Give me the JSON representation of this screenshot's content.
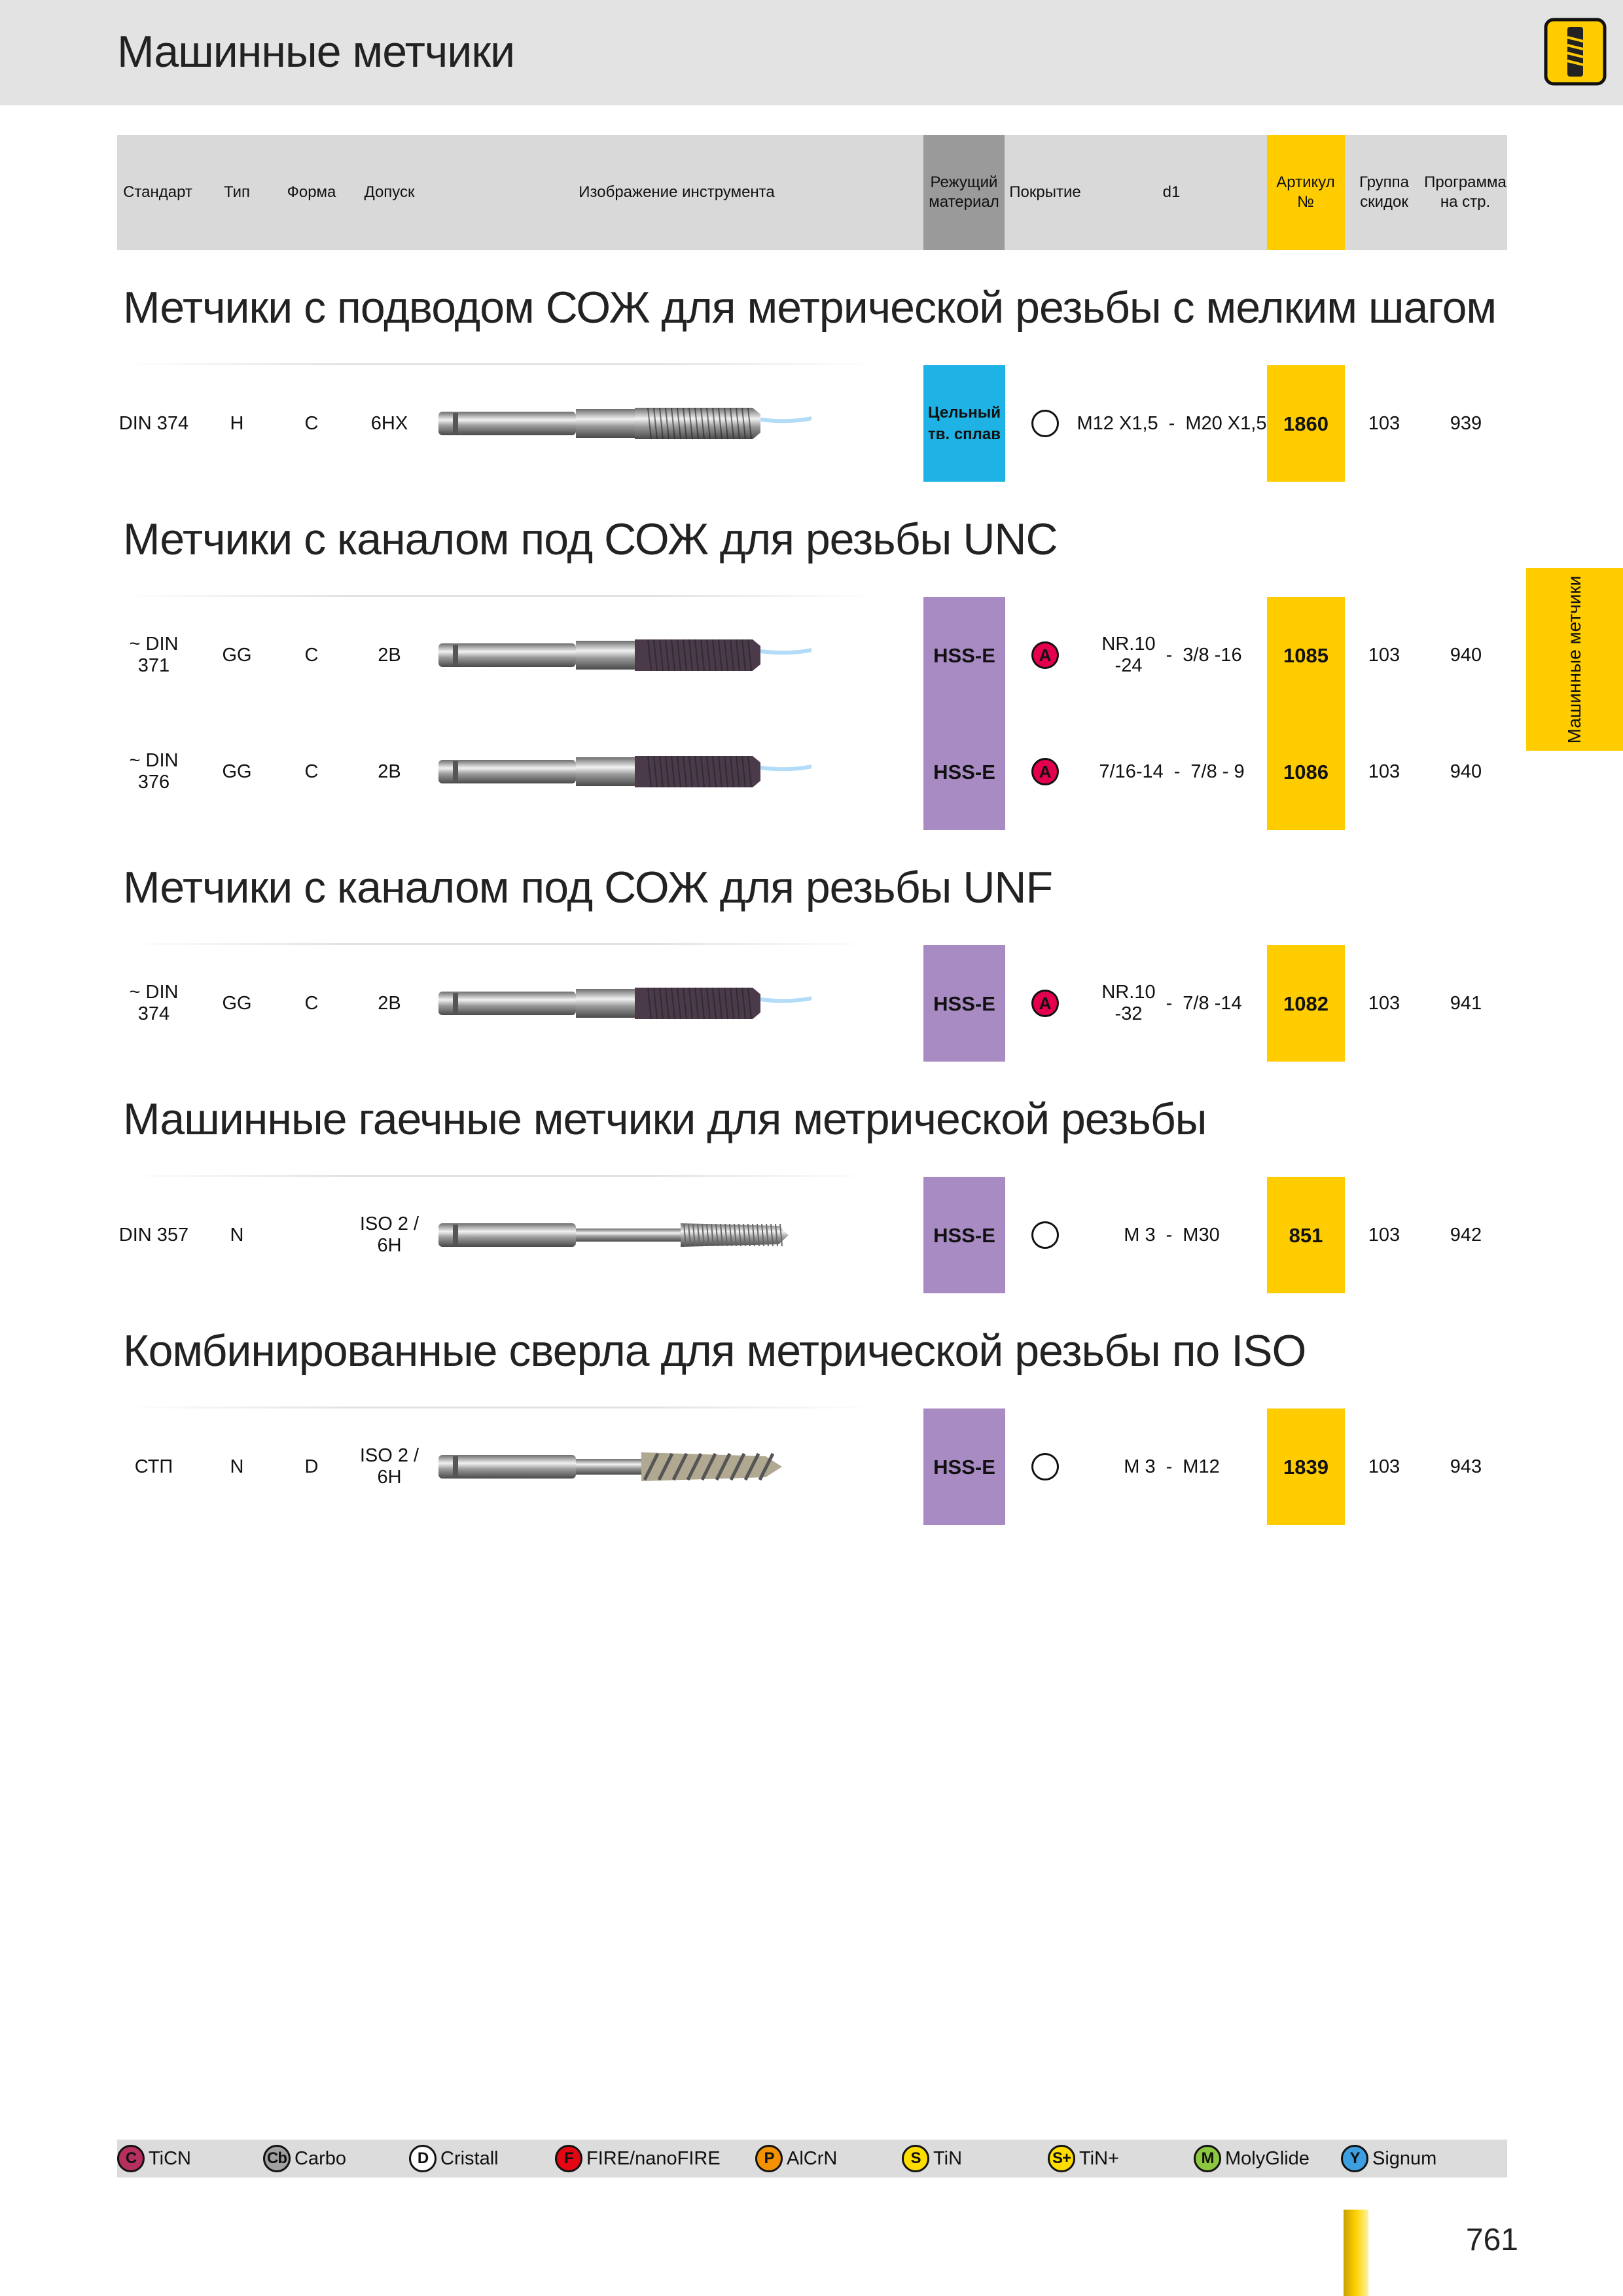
{
  "header": {
    "title": "Машинные метчики"
  },
  "side_tab": "Машинные метчики",
  "table": {
    "columns": [
      "Стандарт",
      "Тип",
      "Форма",
      "Допуск",
      "Изображение инструмента",
      "Режущий\nматериал",
      "Покрытие",
      "d1",
      "Артикул\n№",
      "Группа\nскидок",
      "Программа\nна стр."
    ]
  },
  "sections": [
    {
      "title": "Метчики с подводом СОЖ для метрической резьбы с мелким шагом",
      "rows": [
        {
          "standard": "DIN 374",
          "type": "H",
          "form": "C",
          "tolerance": "6HX",
          "material": "Цельный\nтв. сплав",
          "material_color": "#1fb3e5",
          "d1": [
            "M12 X1,5",
            "-",
            "M20 X1,5"
          ],
          "article": "1860",
          "discount_group": "103",
          "page": "939"
        }
      ]
    },
    {
      "title": "Метчики с каналом под СОЖ для резьбы UNC",
      "rows": [
        {
          "standard": "~ DIN\n371",
          "type": "GG",
          "form": "C",
          "tolerance": "2B",
          "material": "HSS-E",
          "material_color": "#a98bc4",
          "coating": "A",
          "coating_color": "#e5004f",
          "d1": [
            "NR.10\n-24",
            "-",
            "3/8 -16"
          ],
          "article": "1085",
          "discount_group": "103",
          "page": "940"
        },
        {
          "standard": "~ DIN\n376",
          "type": "GG",
          "form": "C",
          "tolerance": "2B",
          "material": "HSS-E",
          "material_color": "#a98bc4",
          "coating": "A",
          "coating_color": "#e5004f",
          "d1": [
            "7/16-14",
            "-",
            "7/8 - 9"
          ],
          "article": "1086",
          "discount_group": "103",
          "page": "940"
        }
      ]
    },
    {
      "title": "Метчики с каналом под СОЖ для резьбы UNF",
      "rows": [
        {
          "standard": "~ DIN\n374",
          "type": "GG",
          "form": "C",
          "tolerance": "2B",
          "material": "HSS-E",
          "material_color": "#a98bc4",
          "coating": "A",
          "coating_color": "#e5004f",
          "d1": [
            "NR.10\n-32",
            "-",
            "7/8 -14"
          ],
          "article": "1082",
          "discount_group": "103",
          "page": "941"
        }
      ]
    },
    {
      "title": "Машинные гаечные метчики для метрической резьбы",
      "rows": [
        {
          "standard": "DIN 357",
          "type": "N",
          "tolerance": "ISO 2 /\n6H",
          "material": "HSS-E",
          "material_color": "#a98bc4",
          "d1": [
            "M 3",
            "-",
            "M30"
          ],
          "article": "851",
          "discount_group": "103",
          "page": "942"
        }
      ]
    },
    {
      "title": "Комбинированные сверла для метрической резьбы по ISO",
      "rows": [
        {
          "standard": "СТП",
          "type": "N",
          "form": "D",
          "tolerance": "ISO 2 /\n6H",
          "material": "HSS-E",
          "material_color": "#a98bc4",
          "d1": [
            "M 3",
            "-",
            "M12"
          ],
          "article": "1839",
          "discount_group": "103",
          "page": "943"
        }
      ]
    }
  ],
  "legend": [
    {
      "symbol": "C",
      "label": "TiCN",
      "color": "#b5305f"
    },
    {
      "symbol": "Cb",
      "label": "Carbo",
      "color": "#a0a0a0"
    },
    {
      "symbol": "D",
      "label": "Cristall",
      "color": "#ffffff"
    },
    {
      "symbol": "F",
      "label": "FIRE/nanoFIRE",
      "color": "#e30613"
    },
    {
      "symbol": "P",
      "label": "AlCrN",
      "color": "#f39200"
    },
    {
      "symbol": "S",
      "label": "TiN",
      "color": "#ffdd00"
    },
    {
      "symbol": "S+",
      "label": "TiN+",
      "color": "#ffdd00"
    },
    {
      "symbol": "M",
      "label": "MolyGlide",
      "color": "#8dc63f"
    },
    {
      "symbol": "Y",
      "label": "Signum",
      "color": "#3d9fe0"
    }
  ],
  "page_number": "761"
}
